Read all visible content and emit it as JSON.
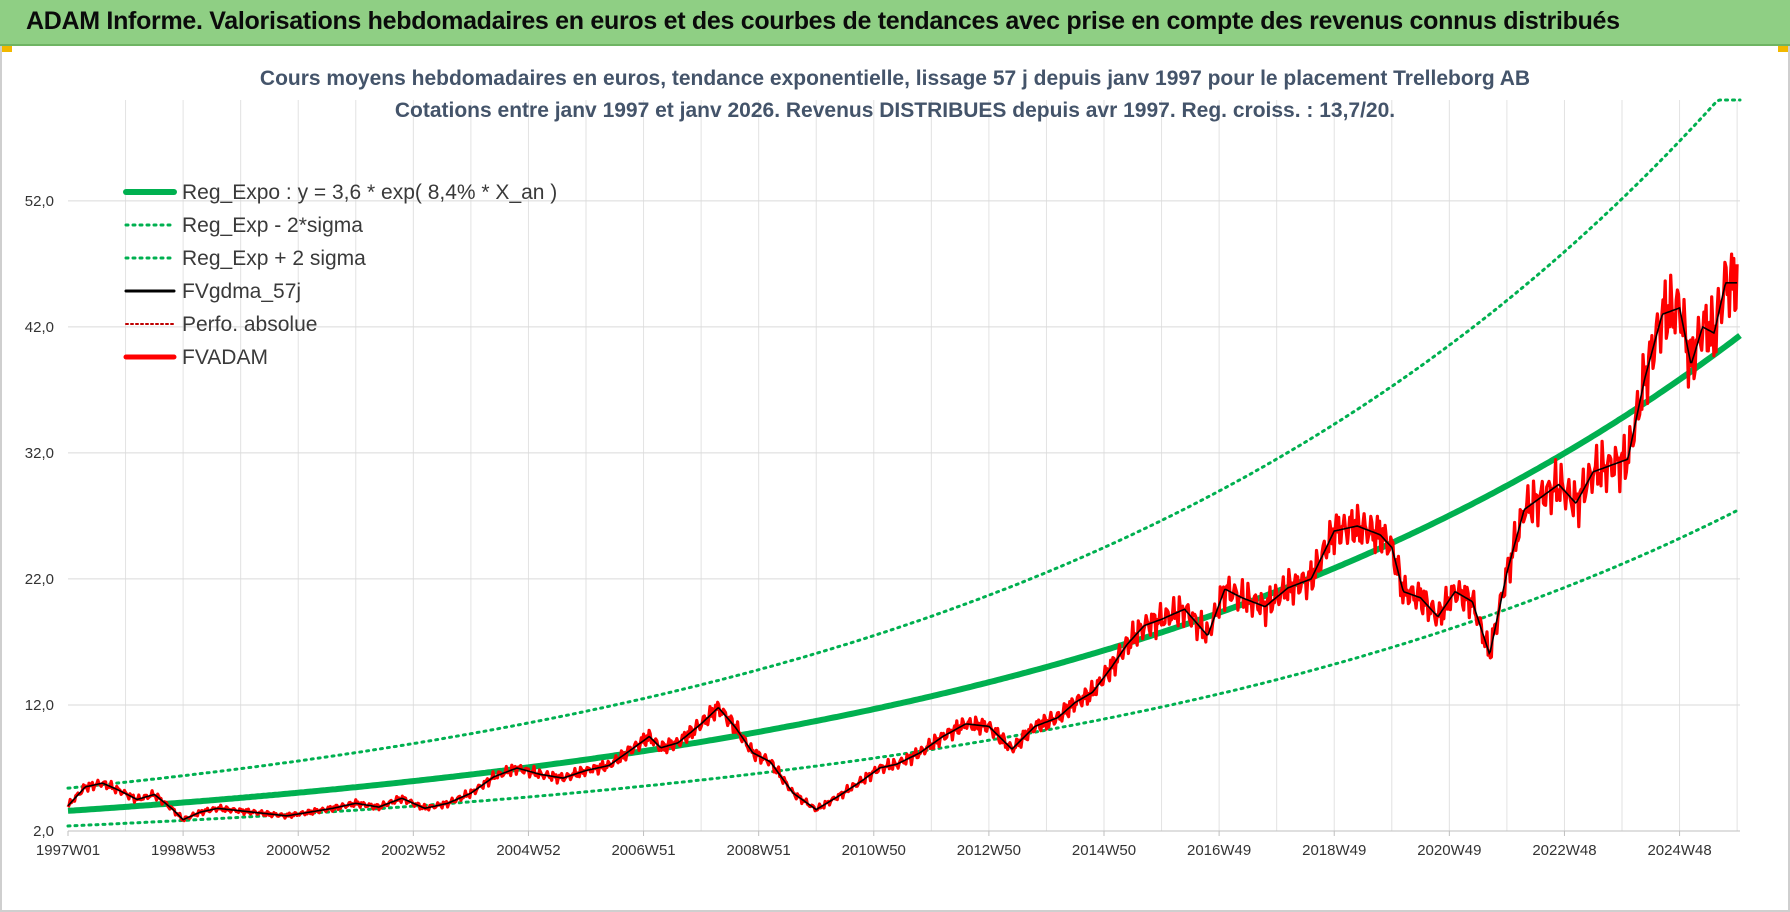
{
  "banner": {
    "title": "ADAM Informe. Valorisations hebdomadaires en euros et des courbes de tendances avec prise en compte des revenus connus distribués"
  },
  "colors": {
    "banner_bg": "#8fcf84",
    "reg_expo": "#00b050",
    "sigma_bands": "#00b050",
    "fvgdma": "#000000",
    "perfo": "#c00000",
    "fvadam": "#ff0000",
    "title_text": "#44546a"
  },
  "chart_data": {
    "type": "line",
    "title": "Cours moyens hebdomadaires en euros, tendance exponentielle, lissage 57 j depuis janv 1997 pour le placement Trelleborg AB",
    "subtitle": "Cotations entre janv 1997 et janv 2026. Revenus DISTRIBUES depuis avr 1997.  Reg. croiss. : 13,7/20.",
    "xlabel": "",
    "ylabel": "",
    "x_range": [
      1997.0,
      2026.05
    ],
    "ylim": [
      2.0,
      60.0
    ],
    "y_ticks": [
      "2,0",
      "12,0",
      "22,0",
      "32,0",
      "42,0",
      "52,0"
    ],
    "y_tick_values": [
      2,
      12,
      22,
      32,
      42,
      52
    ],
    "x_ticks": [
      "1997W01",
      "1998W53",
      "2000W52",
      "2002W52",
      "2004W52",
      "2006W51",
      "2008W51",
      "2010W50",
      "2012W50",
      "2014W50",
      "2016W49",
      "2018W49",
      "2020W49",
      "2022W48",
      "2024W48"
    ],
    "x_tick_values": [
      1997.0,
      1999.0,
      2001.0,
      2003.0,
      2005.0,
      2007.0,
      2009.0,
      2011.0,
      2013.0,
      2015.0,
      2017.0,
      2019.0,
      2021.0,
      2023.0,
      2025.0
    ],
    "grid": true,
    "legend_position": "top-left",
    "regression": {
      "a": 3.6,
      "rate": 0.084,
      "sigma_factor": 1.5,
      "cap": 60
    },
    "series": [
      {
        "name": "Reg_Expo : y = 3,6 * exp( 8,4% *  X_an )",
        "style": "solid-thick",
        "color": "#00b050",
        "kind": "reg"
      },
      {
        "name": "Reg_Exp - 2*sigma",
        "style": "dotted",
        "color": "#00b050",
        "kind": "lower"
      },
      {
        "name": "Reg_Exp + 2 sigma",
        "style": "dotted",
        "color": "#00b050",
        "kind": "upper"
      },
      {
        "name": "FVgdma_57j",
        "style": "solid-thin",
        "color": "#000000",
        "kind": "smooth"
      },
      {
        "name": "Perfo. absolue",
        "style": "dotted-thin",
        "color": "#c00000",
        "kind": "perfo"
      },
      {
        "name": "FVADAM",
        "style": "solid",
        "color": "#ff0000",
        "kind": "price",
        "x": [
          1997.0,
          1997.3,
          1997.6,
          1997.9,
          1998.2,
          1998.5,
          1998.8,
          1999.0,
          1999.3,
          1999.6,
          2000.0,
          2000.4,
          2000.8,
          2001.2,
          2001.6,
          2002.0,
          2002.4,
          2002.8,
          2003.2,
          2003.6,
          2004.0,
          2004.4,
          2004.8,
          2005.2,
          2005.6,
          2006.0,
          2006.4,
          2006.8,
          2007.1,
          2007.3,
          2007.6,
          2008.0,
          2008.3,
          2008.6,
          2008.9,
          2009.2,
          2009.6,
          2010.0,
          2010.4,
          2010.8,
          2011.1,
          2011.4,
          2011.8,
          2012.2,
          2012.6,
          2013.0,
          2013.4,
          2013.8,
          2014.2,
          2014.5,
          2014.8,
          2015.1,
          2015.4,
          2015.7,
          2016.0,
          2016.4,
          2016.8,
          2017.1,
          2017.4,
          2017.8,
          2018.2,
          2018.6,
          2019.0,
          2019.4,
          2019.8,
          2020.0,
          2020.2,
          2020.5,
          2020.8,
          2021.1,
          2021.4,
          2021.7,
          2022.0,
          2022.3,
          2022.6,
          2022.9,
          2023.2,
          2023.5,
          2023.8,
          2024.1,
          2024.4,
          2024.7,
          2025.0,
          2025.2,
          2025.4,
          2025.6,
          2025.8,
          2026.0
        ],
        "y": [
          4.0,
          5.5,
          5.8,
          5.2,
          4.5,
          4.9,
          3.8,
          2.9,
          3.5,
          3.8,
          3.6,
          3.4,
          3.2,
          3.5,
          3.8,
          4.2,
          3.9,
          4.6,
          3.8,
          4.2,
          5.0,
          6.3,
          7.0,
          6.5,
          6.2,
          6.8,
          7.2,
          8.5,
          9.5,
          8.6,
          9.0,
          10.5,
          11.8,
          10.2,
          8.2,
          7.5,
          5.0,
          3.7,
          4.8,
          6.0,
          7.0,
          7.3,
          8.2,
          9.5,
          10.5,
          10.3,
          8.5,
          10.3,
          11.0,
          12.2,
          13.0,
          14.8,
          16.8,
          18.3,
          18.8,
          19.6,
          17.5,
          21.2,
          20.5,
          19.8,
          21.3,
          22.0,
          25.8,
          26.2,
          25.5,
          24.5,
          21.0,
          20.5,
          19.0,
          21.0,
          20.2,
          16.0,
          22.5,
          27.5,
          28.5,
          29.5,
          28.0,
          30.5,
          31.0,
          31.5,
          38.0,
          43.0,
          43.5,
          39.0,
          42.0,
          41.5,
          45.5,
          45.5
        ]
      }
    ]
  }
}
